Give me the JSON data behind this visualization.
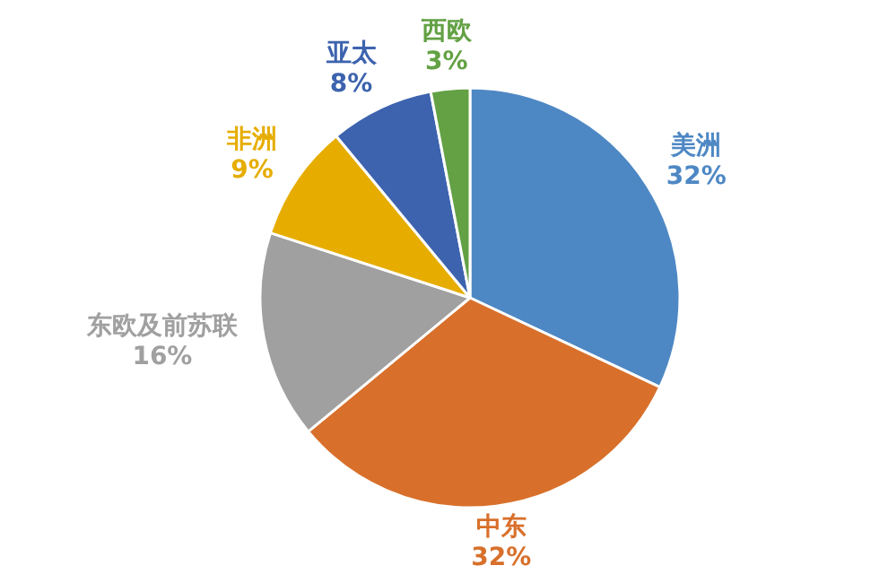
{
  "chart_data": {
    "type": "pie",
    "categories": [
      "美洲",
      "中东",
      "东欧及前苏联",
      "非洲",
      "亚太",
      "西欧"
    ],
    "values": [
      32,
      32,
      16,
      9,
      8,
      3
    ],
    "colors": [
      "#4e88c4",
      "#d8702b",
      "#a0a0a0",
      "#e6ad00",
      "#3d63ae",
      "#63a144"
    ],
    "value_labels": [
      "32%",
      "32%",
      "16%",
      "9%",
      "8%",
      "3%"
    ]
  }
}
